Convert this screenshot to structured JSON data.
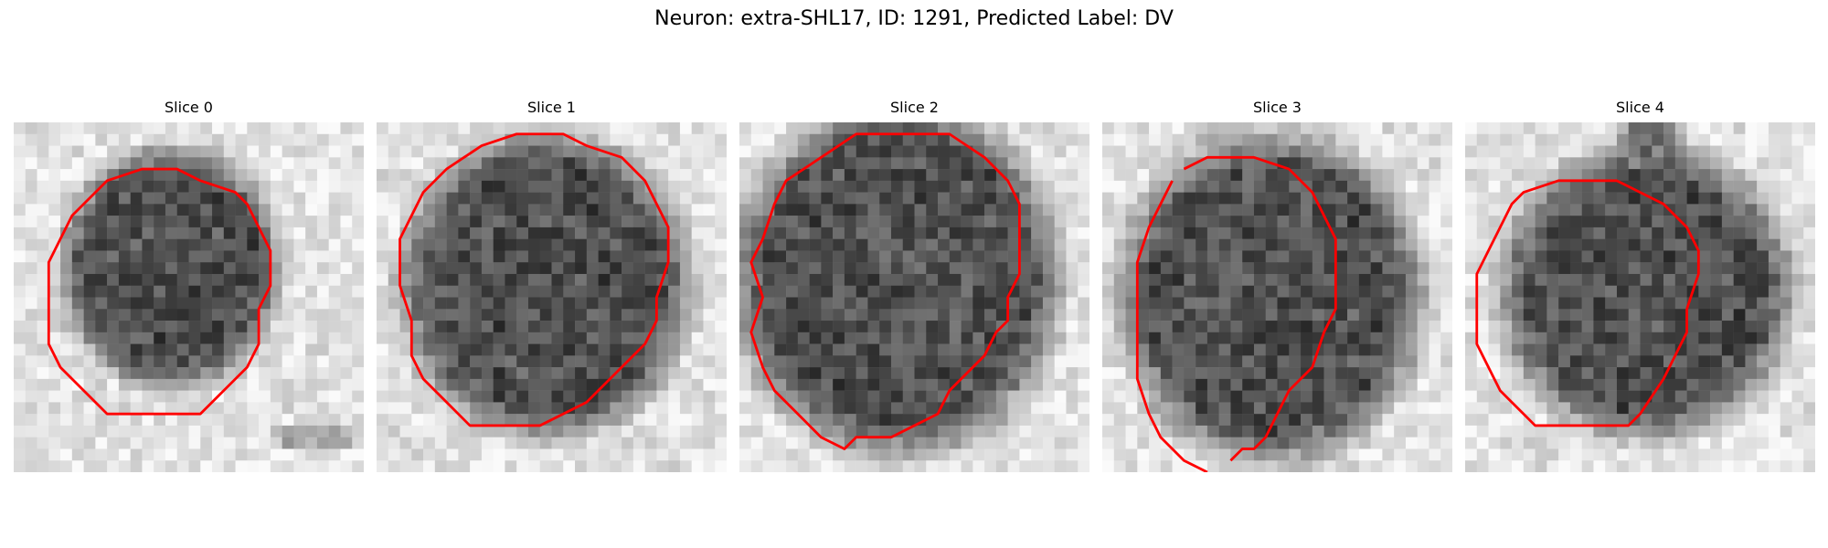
{
  "figure": {
    "title": "Neuron: extra-SHL17, ID: 1291, Predicted Label: DV",
    "contour_color": "#ff0000",
    "slices": [
      {
        "title": "Slice 0"
      },
      {
        "title": "Slice 1"
      },
      {
        "title": "Slice 2"
      },
      {
        "title": "Slice 3"
      },
      {
        "title": "Slice 4"
      }
    ]
  }
}
